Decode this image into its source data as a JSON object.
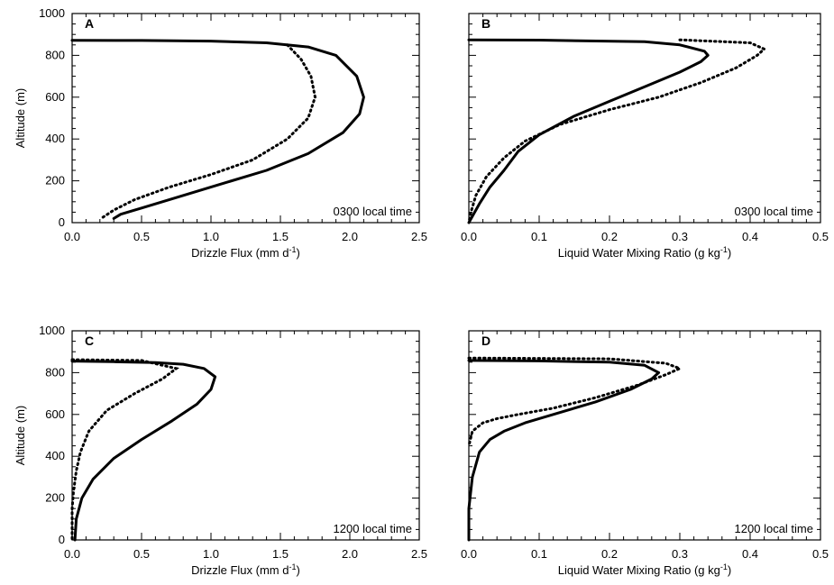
{
  "chart_data": [
    {
      "type": "line",
      "panel": "A",
      "annotation": "0300 local time",
      "xlabel": "Drizzle Flux (mm d",
      "xlabel_sup": "-1",
      "xlabel_end": ")",
      "ylabel": "Altitude (m)",
      "xlim": [
        0,
        2.5
      ],
      "ylim": [
        0,
        1000
      ],
      "xticks": [
        "0.0",
        "0.5",
        "1.0",
        "1.5",
        "2.0",
        "2.5"
      ],
      "yticks": [
        "0",
        "200",
        "400",
        "600",
        "800",
        "1000"
      ],
      "series": [
        {
          "style": "solid",
          "points": [
            [
              0.0,
              872
            ],
            [
              0.5,
              871
            ],
            [
              1.0,
              868
            ],
            [
              1.4,
              860
            ],
            [
              1.7,
              840
            ],
            [
              1.9,
              800
            ],
            [
              2.05,
              700
            ],
            [
              2.1,
              600
            ],
            [
              2.07,
              520
            ],
            [
              1.95,
              430
            ],
            [
              1.7,
              330
            ],
            [
              1.4,
              250
            ],
            [
              1.05,
              180
            ],
            [
              0.75,
              120
            ],
            [
              0.5,
              70
            ],
            [
              0.35,
              40
            ],
            [
              0.3,
              20
            ]
          ]
        },
        {
          "style": "dotted",
          "points": [
            [
              1.55,
              850
            ],
            [
              1.65,
              780
            ],
            [
              1.72,
              700
            ],
            [
              1.75,
              600
            ],
            [
              1.7,
              500
            ],
            [
              1.55,
              400
            ],
            [
              1.3,
              300
            ],
            [
              1.0,
              230
            ],
            [
              0.7,
              170
            ],
            [
              0.45,
              110
            ],
            [
              0.3,
              60
            ],
            [
              0.22,
              25
            ]
          ]
        }
      ]
    },
    {
      "type": "line",
      "panel": "B",
      "annotation": "0300 local time",
      "xlabel": "Liquid Water Mixing Ratio (g kg",
      "xlabel_sup": "-1",
      "xlabel_end": ")",
      "ylabel": "",
      "xlim": [
        0,
        0.5
      ],
      "ylim": [
        0,
        1000
      ],
      "xticks": [
        "0.0",
        "0.1",
        "0.2",
        "0.3",
        "0.4",
        "0.5"
      ],
      "yticks": [],
      "series": [
        {
          "style": "solid",
          "points": [
            [
              0.0,
              874
            ],
            [
              0.1,
              873
            ],
            [
              0.25,
              865
            ],
            [
              0.3,
              850
            ],
            [
              0.335,
              820
            ],
            [
              0.34,
              800
            ],
            [
              0.33,
              770
            ],
            [
              0.3,
              720
            ],
            [
              0.25,
              650
            ],
            [
              0.2,
              580
            ],
            [
              0.15,
              510
            ],
            [
              0.1,
              420
            ],
            [
              0.07,
              340
            ],
            [
              0.05,
              250
            ],
            [
              0.03,
              170
            ],
            [
              0.015,
              90
            ],
            [
              0.005,
              30
            ],
            [
              0.0,
              0
            ]
          ]
        },
        {
          "style": "dotted",
          "points": [
            [
              0.3,
              874
            ],
            [
              0.4,
              860
            ],
            [
              0.42,
              830
            ],
            [
              0.41,
              800
            ],
            [
              0.38,
              740
            ],
            [
              0.33,
              670
            ],
            [
              0.27,
              600
            ],
            [
              0.2,
              540
            ],
            [
              0.13,
              470
            ],
            [
              0.08,
              390
            ],
            [
              0.05,
              310
            ],
            [
              0.025,
              220
            ],
            [
              0.01,
              130
            ],
            [
              0.003,
              50
            ],
            [
              0.0,
              0
            ]
          ]
        }
      ]
    },
    {
      "type": "line",
      "panel": "C",
      "annotation": "1200 local time",
      "xlabel": "Drizzle Flux (mm d",
      "xlabel_sup": "-1",
      "xlabel_end": ")",
      "ylabel": "Altitude (m)",
      "xlim": [
        0,
        2.5
      ],
      "ylim": [
        0,
        1000
      ],
      "xticks": [
        "0.0",
        "0.5",
        "1.0",
        "1.5",
        "2.0",
        "2.5"
      ],
      "yticks": [
        "0",
        "200",
        "400",
        "600",
        "800",
        "1000"
      ],
      "series": [
        {
          "style": "solid",
          "points": [
            [
              0.0,
              855
            ],
            [
              0.3,
              852
            ],
            [
              0.6,
              848
            ],
            [
              0.8,
              840
            ],
            [
              0.95,
              820
            ],
            [
              1.03,
              780
            ],
            [
              1.0,
              720
            ],
            [
              0.9,
              650
            ],
            [
              0.72,
              570
            ],
            [
              0.5,
              480
            ],
            [
              0.3,
              390
            ],
            [
              0.15,
              290
            ],
            [
              0.07,
              200
            ],
            [
              0.03,
              100
            ],
            [
              0.02,
              0
            ]
          ]
        },
        {
          "style": "dotted",
          "points": [
            [
              0.0,
              862
            ],
            [
              0.5,
              858
            ],
            [
              0.75,
              820
            ],
            [
              0.65,
              770
            ],
            [
              0.45,
              700
            ],
            [
              0.25,
              620
            ],
            [
              0.12,
              520
            ],
            [
              0.06,
              420
            ],
            [
              0.03,
              330
            ],
            [
              0.01,
              230
            ],
            [
              0.0,
              150
            ],
            [
              0.0,
              0
            ]
          ]
        }
      ]
    },
    {
      "type": "line",
      "panel": "D",
      "annotation": "1200 local time",
      "xlabel": "Liquid Water Mixing Ratio (g kg",
      "xlabel_sup": "-1",
      "xlabel_end": ")",
      "ylabel": "",
      "xlim": [
        0,
        0.5
      ],
      "ylim": [
        0,
        1000
      ],
      "xticks": [
        "0.0",
        "0.1",
        "0.2",
        "0.3",
        "0.4",
        "0.5"
      ],
      "yticks": [],
      "series": [
        {
          "style": "solid",
          "points": [
            [
              0.0,
              858
            ],
            [
              0.1,
              856
            ],
            [
              0.2,
              850
            ],
            [
              0.25,
              835
            ],
            [
              0.27,
              800
            ],
            [
              0.26,
              770
            ],
            [
              0.23,
              720
            ],
            [
              0.18,
              660
            ],
            [
              0.12,
              600
            ],
            [
              0.08,
              560
            ],
            [
              0.05,
              520
            ],
            [
              0.03,
              480
            ],
            [
              0.015,
              420
            ],
            [
              0.005,
              300
            ],
            [
              0.0,
              150
            ],
            [
              0.0,
              0
            ]
          ]
        },
        {
          "style": "dotted",
          "points": [
            [
              0.0,
              870
            ],
            [
              0.2,
              866
            ],
            [
              0.28,
              845
            ],
            [
              0.3,
              820
            ],
            [
              0.28,
              790
            ],
            [
              0.24,
              740
            ],
            [
              0.18,
              680
            ],
            [
              0.12,
              630
            ],
            [
              0.07,
              600
            ],
            [
              0.04,
              580
            ],
            [
              0.02,
              560
            ],
            [
              0.005,
              520
            ],
            [
              0.0,
              450
            ]
          ]
        }
      ]
    }
  ]
}
